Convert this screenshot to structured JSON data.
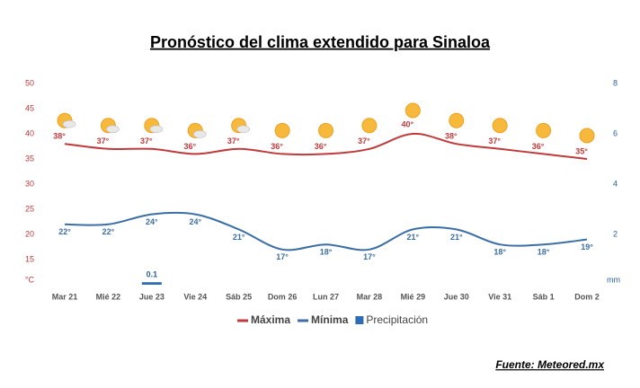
{
  "chart_data": {
    "type": "line",
    "title": "Pronóstico del clima extendido para Sinaloa",
    "source": "Fuente: Meteored.mx",
    "categories": [
      "Mar 21",
      "Mié 22",
      "Jue 23",
      "Vie 24",
      "Sáb 25",
      "Dom 26",
      "Lun 27",
      "Mar 28",
      "Mié 29",
      "Jue 30",
      "Vie 31",
      "Sáb 1",
      "Dom 2"
    ],
    "series": [
      {
        "name": "Máxima",
        "color": "#c0393b",
        "values": [
          38,
          37,
          37,
          36,
          37,
          36,
          36,
          37,
          40,
          38,
          37,
          36,
          35
        ],
        "value_labels": [
          "38°",
          "37°",
          "37°",
          "36°",
          "37°",
          "36°",
          "36°",
          "37°",
          "40°",
          "38°",
          "37°",
          "36°",
          "35°"
        ]
      },
      {
        "name": "Mínima",
        "color": "#3a6ea5",
        "values": [
          22,
          22,
          24,
          24,
          21,
          17,
          18,
          17,
          21,
          21,
          18,
          18,
          19
        ],
        "value_labels": [
          "22°",
          "22°",
          "24°",
          "24°",
          "21°",
          "17°",
          "18°",
          "17°",
          "21°",
          "21°",
          "18°",
          "18°",
          "19°"
        ]
      },
      {
        "name": "Precipitación",
        "color": "#2e6db4",
        "type": "bar",
        "axis": "y2",
        "values": [
          null,
          null,
          0.1,
          null,
          null,
          null,
          null,
          null,
          null,
          null,
          null,
          null,
          null
        ]
      }
    ],
    "ylim": [
      10,
      50
    ],
    "yticks": [
      {
        "value": 10,
        "label": "°C"
      },
      15,
      20,
      25,
      30,
      35,
      40,
      45,
      50
    ],
    "y2lim": [
      0,
      8
    ],
    "y2ticks": [
      {
        "value": 0,
        "label": "mm"
      },
      2,
      4,
      6,
      8
    ],
    "grid": false,
    "legend": "bottom"
  }
}
